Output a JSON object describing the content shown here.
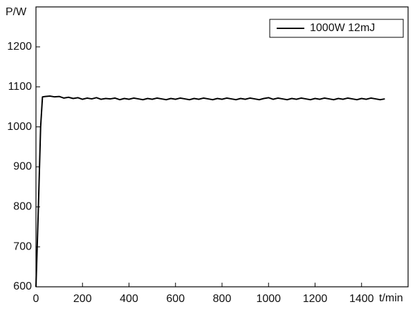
{
  "chart_data": {
    "type": "line",
    "y_label": "P/W",
    "x_label": "t/min",
    "x": [
      0,
      10,
      20,
      28,
      40,
      60,
      80,
      100,
      120,
      140,
      160,
      180,
      200,
      220,
      240,
      260,
      280,
      300,
      320,
      340,
      360,
      380,
      400,
      420,
      440,
      460,
      480,
      500,
      520,
      540,
      560,
      580,
      600,
      620,
      640,
      660,
      680,
      700,
      720,
      740,
      760,
      780,
      800,
      820,
      840,
      860,
      880,
      900,
      920,
      940,
      960,
      980,
      1000,
      1020,
      1040,
      1060,
      1080,
      1100,
      1120,
      1140,
      1160,
      1180,
      1200,
      1220,
      1240,
      1260,
      1280,
      1300,
      1320,
      1340,
      1360,
      1380,
      1400,
      1420,
      1440,
      1460,
      1480,
      1500
    ],
    "series": [
      {
        "name": "1000W 12mJ",
        "color": "#000000",
        "values": [
          600,
          790,
          1000,
          1075,
          1076,
          1077,
          1075,
          1076,
          1072,
          1074,
          1071,
          1073,
          1069,
          1072,
          1070,
          1073,
          1069,
          1071,
          1070,
          1072,
          1068,
          1071,
          1069,
          1072,
          1070,
          1068,
          1071,
          1069,
          1072,
          1070,
          1068,
          1071,
          1069,
          1072,
          1070,
          1068,
          1071,
          1069,
          1072,
          1070,
          1068,
          1071,
          1069,
          1072,
          1070,
          1068,
          1071,
          1069,
          1072,
          1070,
          1068,
          1071,
          1073,
          1069,
          1072,
          1070,
          1068,
          1071,
          1069,
          1072,
          1070,
          1068,
          1071,
          1069,
          1072,
          1070,
          1068,
          1071,
          1069,
          1072,
          1070,
          1068,
          1071,
          1069,
          1072,
          1070,
          1068,
          1070
        ]
      }
    ],
    "xlim": [
      0,
      1600
    ],
    "xticks": [
      0,
      200,
      400,
      600,
      800,
      1000,
      1200,
      1400
    ],
    "ylim": [
      600,
      1300
    ],
    "yticks": [
      600,
      700,
      800,
      900,
      1000,
      1100,
      1200
    ],
    "legend": "top-right"
  }
}
